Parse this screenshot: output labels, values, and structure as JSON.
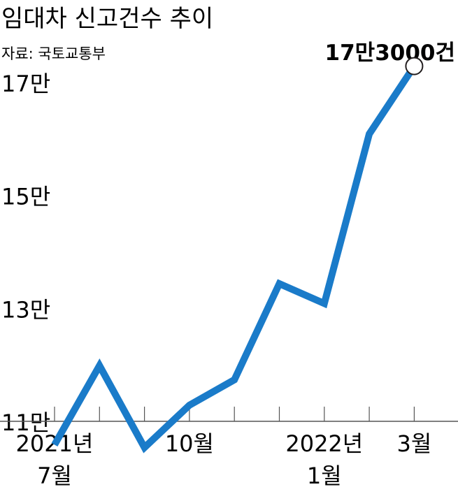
{
  "chart_data": {
    "type": "line",
    "title": "임대차 신고건수 추이",
    "source": "자료: 국토교통부",
    "annotation": "17만3000건",
    "y_tick_labels": [
      "17만",
      "15만",
      "13만",
      "11만"
    ],
    "y_tick_values": [
      170000,
      150000,
      130000,
      110000
    ],
    "x_tick_labels": [
      {
        "line1": "2021년",
        "line2": "7월"
      },
      {
        "line1": "10월",
        "line2": ""
      },
      {
        "line1": "2022년",
        "line2": "1월"
      },
      {
        "line1": "3월",
        "line2": ""
      }
    ],
    "categories": [
      "2021-07",
      "2021-08",
      "2021-09",
      "2021-10",
      "2021-11",
      "2021-12",
      "2022-01",
      "2022-02",
      "2022-03"
    ],
    "series": [
      {
        "values": [
          106000,
          120000,
          105500,
          113000,
          117500,
          134500,
          131000,
          161000,
          173000
        ]
      }
    ],
    "ylim": [
      100000,
      180000
    ],
    "grid": false,
    "line_color": "#1a7bc9",
    "axis_color": "#555555"
  }
}
